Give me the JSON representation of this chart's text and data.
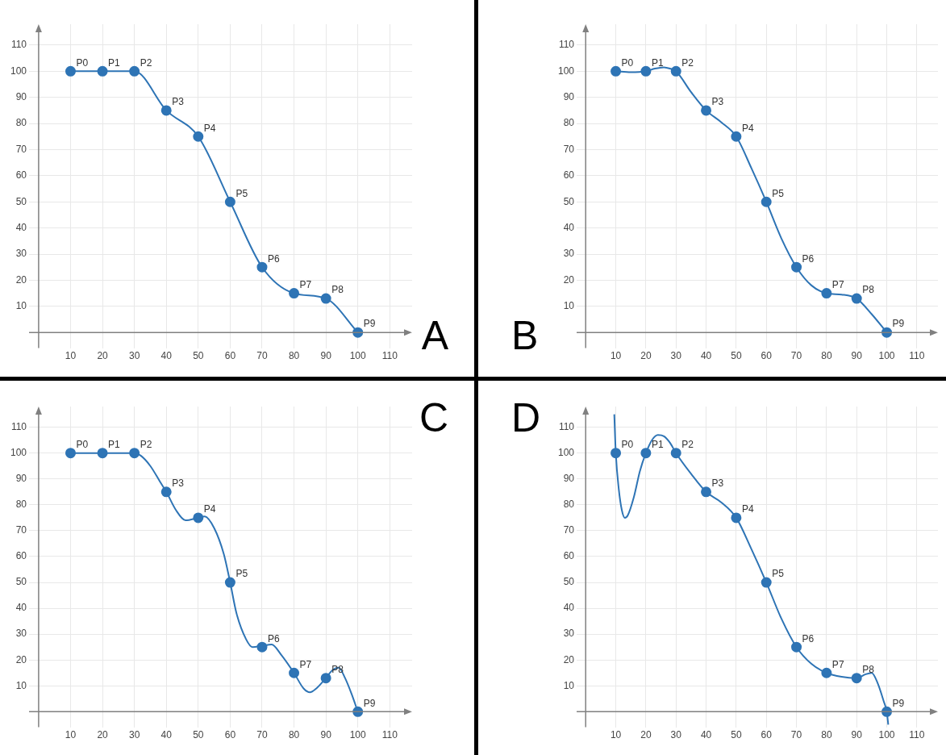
{
  "chart_data": [
    {
      "type": "line",
      "title": "A",
      "xlim": [
        -3,
        117
      ],
      "ylim": [
        -6,
        118
      ],
      "xticks": [
        10,
        20,
        30,
        40,
        50,
        60,
        70,
        80,
        90,
        100,
        110
      ],
      "yticks": [
        10,
        20,
        30,
        40,
        50,
        60,
        70,
        80,
        90,
        100,
        110
      ],
      "grid": true,
      "legend": false,
      "annotations": [
        {
          "text": "P0",
          "x": 10,
          "y": 100
        },
        {
          "text": "P1",
          "x": 20,
          "y": 100
        },
        {
          "text": "P2",
          "x": 30,
          "y": 100
        },
        {
          "text": "P3",
          "x": 40,
          "y": 85
        },
        {
          "text": "P4",
          "x": 50,
          "y": 75
        },
        {
          "text": "P5",
          "x": 60,
          "y": 50
        },
        {
          "text": "P6",
          "x": 70,
          "y": 25
        },
        {
          "text": "P7",
          "x": 80,
          "y": 15
        },
        {
          "text": "P8",
          "x": 90,
          "y": 13
        },
        {
          "text": "P9",
          "x": 100,
          "y": 0
        }
      ],
      "series": [
        {
          "type": "line",
          "marker": "circle",
          "color": "#2e74b5",
          "x": [
            10,
            20,
            30,
            40,
            50,
            60,
            70,
            80,
            90,
            100
          ],
          "values": [
            100,
            100,
            100,
            85,
            75,
            50,
            25,
            15,
            13,
            0
          ]
        }
      ]
    },
    {
      "type": "line",
      "title": "B",
      "xlim": [
        -3,
        117
      ],
      "ylim": [
        -6,
        118
      ],
      "xticks": [
        10,
        20,
        30,
        40,
        50,
        60,
        70,
        80,
        90,
        100,
        110
      ],
      "yticks": [
        10,
        20,
        30,
        40,
        50,
        60,
        70,
        80,
        90,
        100,
        110
      ],
      "grid": true,
      "legend": false,
      "annotations": [
        {
          "text": "P0",
          "x": 10,
          "y": 100
        },
        {
          "text": "P1",
          "x": 20,
          "y": 100
        },
        {
          "text": "P2",
          "x": 30,
          "y": 100
        },
        {
          "text": "P3",
          "x": 40,
          "y": 85
        },
        {
          "text": "P4",
          "x": 50,
          "y": 75
        },
        {
          "text": "P5",
          "x": 60,
          "y": 50
        },
        {
          "text": "P6",
          "x": 70,
          "y": 25
        },
        {
          "text": "P7",
          "x": 80,
          "y": 15
        },
        {
          "text": "P8",
          "x": 90,
          "y": 13
        },
        {
          "text": "P9",
          "x": 100,
          "y": 0
        }
      ],
      "series": [
        {
          "type": "line",
          "marker": "none",
          "color": "#2e74b5",
          "x": [
            10,
            15,
            20,
            23,
            26,
            28,
            30,
            35,
            40,
            45,
            50,
            55,
            60,
            65,
            70,
            75,
            80,
            85,
            90,
            95,
            100
          ],
          "values": [
            100,
            99.6,
            100,
            101,
            101.5,
            101,
            100,
            92,
            85,
            80.5,
            75,
            63,
            50,
            36,
            25,
            18,
            15,
            14.5,
            13,
            7,
            0
          ]
        },
        {
          "type": "scatter",
          "marker": "circle",
          "color": "#2e74b5",
          "x": [
            10,
            20,
            30,
            40,
            50,
            60,
            70,
            80,
            90,
            100
          ],
          "values": [
            100,
            100,
            100,
            85,
            75,
            50,
            25,
            15,
            13,
            0
          ]
        }
      ]
    },
    {
      "type": "line",
      "title": "C",
      "xlim": [
        -3,
        117
      ],
      "ylim": [
        -6,
        118
      ],
      "xticks": [
        10,
        20,
        30,
        40,
        50,
        60,
        70,
        80,
        90,
        100,
        110
      ],
      "yticks": [
        10,
        20,
        30,
        40,
        50,
        60,
        70,
        80,
        90,
        100,
        110
      ],
      "grid": true,
      "legend": false,
      "annotations": [
        {
          "text": "P0",
          "x": 10,
          "y": 100
        },
        {
          "text": "P1",
          "x": 20,
          "y": 100
        },
        {
          "text": "P2",
          "x": 30,
          "y": 100
        },
        {
          "text": "P3",
          "x": 40,
          "y": 85
        },
        {
          "text": "P4",
          "x": 50,
          "y": 75
        },
        {
          "text": "P5",
          "x": 60,
          "y": 50
        },
        {
          "text": "P6",
          "x": 70,
          "y": 25
        },
        {
          "text": "P7",
          "x": 80,
          "y": 15
        },
        {
          "text": "P8",
          "x": 90,
          "y": 13
        },
        {
          "text": "P9",
          "x": 100,
          "y": 0
        }
      ],
      "series": [
        {
          "type": "line",
          "marker": "none",
          "color": "#2e74b5",
          "x": [
            10,
            20,
            30,
            32,
            35,
            38,
            40,
            43,
            46,
            50,
            52,
            55,
            58,
            60,
            62,
            65,
            67,
            70,
            73,
            76,
            80,
            83,
            85,
            87,
            90,
            92,
            94,
            96,
            98,
            100
          ],
          "values": [
            100,
            100,
            100,
            99,
            95,
            89,
            85,
            78,
            74,
            75,
            75.5,
            71,
            61,
            50,
            38,
            28,
            25,
            25.5,
            26,
            22,
            15,
            9,
            7.5,
            9,
            13,
            16,
            17,
            13,
            7,
            0
          ]
        },
        {
          "type": "scatter",
          "marker": "circle",
          "color": "#2e74b5",
          "x": [
            10,
            20,
            30,
            40,
            50,
            60,
            70,
            80,
            90,
            100
          ],
          "values": [
            100,
            100,
            100,
            85,
            75,
            50,
            25,
            15,
            13,
            0
          ]
        }
      ]
    },
    {
      "type": "line",
      "title": "D",
      "xlim": [
        -3,
        117
      ],
      "ylim": [
        -6,
        118
      ],
      "xticks": [
        10,
        20,
        30,
        40,
        50,
        60,
        70,
        80,
        90,
        100,
        110
      ],
      "yticks": [
        10,
        20,
        30,
        40,
        50,
        60,
        70,
        80,
        90,
        100,
        110
      ],
      "grid": true,
      "legend": false,
      "annotations": [
        {
          "text": "P0",
          "x": 10,
          "y": 100
        },
        {
          "text": "P1",
          "x": 20,
          "y": 100
        },
        {
          "text": "P2",
          "x": 30,
          "y": 100
        },
        {
          "text": "P3",
          "x": 40,
          "y": 85
        },
        {
          "text": "P4",
          "x": 50,
          "y": 75
        },
        {
          "text": "P5",
          "x": 60,
          "y": 50
        },
        {
          "text": "P6",
          "x": 70,
          "y": 25
        },
        {
          "text": "P7",
          "x": 80,
          "y": 15
        },
        {
          "text": "P8",
          "x": 90,
          "y": 13
        },
        {
          "text": "P9",
          "x": 100,
          "y": 0
        }
      ],
      "series": [
        {
          "type": "line",
          "marker": "none",
          "color": "#2e74b5",
          "x": [
            9.5,
            10,
            11,
            12,
            13,
            14,
            16,
            18,
            20,
            22,
            24,
            26,
            28,
            30,
            35,
            40,
            45,
            50,
            55,
            60,
            65,
            70,
            75,
            80,
            85,
            90,
            93,
            95,
            97,
            99,
            100,
            100.5
          ],
          "values": [
            115,
            100,
            86,
            78,
            75,
            76,
            83,
            93,
            100,
            105,
            107,
            106.5,
            104,
            100,
            92,
            85,
            81,
            75,
            63,
            50,
            36,
            25,
            18.5,
            15,
            13.5,
            13,
            14.5,
            15,
            11,
            4,
            0,
            -5
          ]
        },
        {
          "type": "scatter",
          "marker": "circle",
          "color": "#2e74b5",
          "x": [
            10,
            20,
            30,
            40,
            50,
            60,
            70,
            80,
            90,
            100
          ],
          "values": [
            100,
            100,
            100,
            85,
            75,
            50,
            25,
            15,
            13,
            0
          ]
        }
      ]
    }
  ]
}
